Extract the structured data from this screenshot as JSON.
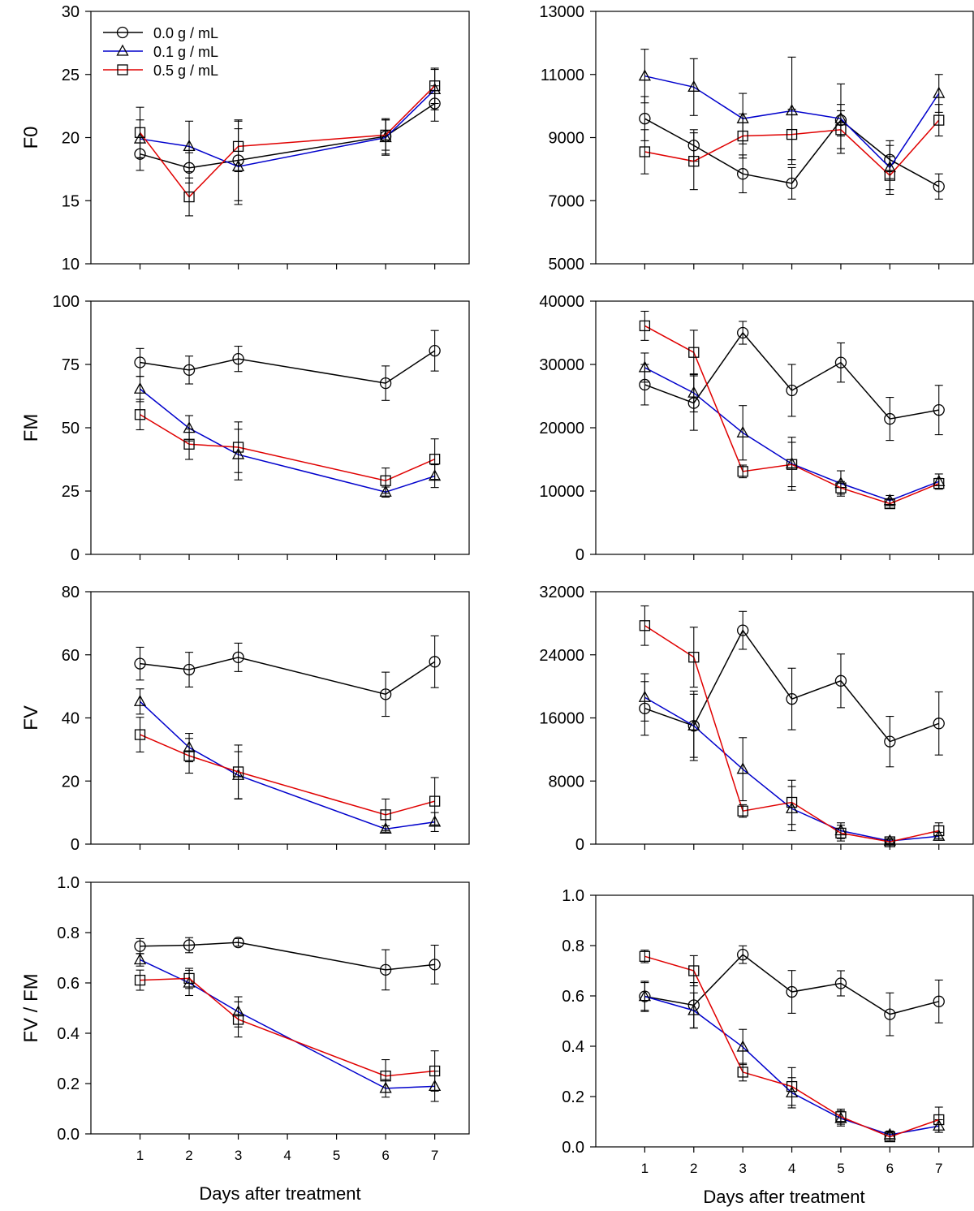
{
  "legend": {
    "entries": [
      {
        "label": "0.0 g / mL",
        "color": "#000000",
        "marker": "circle"
      },
      {
        "label": "0.1 g / mL",
        "color": "#0000cc",
        "marker": "triangle"
      },
      {
        "label": "0.5 g / mL",
        "color": "#e00000",
        "marker": "square"
      }
    ]
  },
  "x_axis_title": "Days after treatment",
  "chart_data": [
    {
      "type": "line",
      "panel": "left-1",
      "ylabel": "F0",
      "xlim": [
        0,
        7.7
      ],
      "ylim": [
        10,
        30
      ],
      "xticks": [
        1,
        2,
        3,
        4,
        5,
        6,
        7
      ],
      "yticks": [
        "10",
        "15",
        "20",
        "25",
        "30"
      ],
      "show_xticklabels": false,
      "series": [
        {
          "name": "0.0 g / mL",
          "color": "#000000",
          "marker": "circle",
          "x": [
            1,
            2,
            3,
            6,
            7
          ],
          "y": [
            18.7,
            17.6,
            18.2,
            20.1,
            22.7
          ],
          "err": [
            1.3,
            1.2,
            3.2,
            1.4,
            1.4
          ]
        },
        {
          "name": "0.1 g / mL",
          "color": "#0000cc",
          "marker": "triangle",
          "x": [
            1,
            2,
            3,
            6,
            7
          ],
          "y": [
            19.9,
            19.3,
            17.7,
            20.0,
            23.8
          ],
          "err": [
            1.5,
            2.0,
            3.0,
            1.4,
            1.6
          ]
        },
        {
          "name": "0.5 g / mL",
          "color": "#e00000",
          "marker": "square",
          "x": [
            1,
            2,
            3,
            6,
            7
          ],
          "y": [
            20.4,
            15.3,
            19.3,
            20.2,
            24.1
          ],
          "err": [
            2.0,
            1.5,
            2.0,
            1.2,
            1.4
          ]
        }
      ]
    },
    {
      "type": "line",
      "panel": "right-1",
      "ylabel": "",
      "xlim": [
        0,
        7.7
      ],
      "ylim": [
        5000,
        13000
      ],
      "xticks": [
        1,
        2,
        3,
        4,
        5,
        6,
        7
      ],
      "yticks": [
        "5000",
        "7000",
        "9000",
        "11000",
        "13000"
      ],
      "show_xticklabels": false,
      "series": [
        {
          "name": "0.0 g / mL",
          "color": "#000000",
          "marker": "circle",
          "x": [
            1,
            2,
            3,
            4,
            5,
            6,
            7
          ],
          "y": [
            9600,
            8750,
            7850,
            7550,
            9550,
            8300,
            7450
          ],
          "err": [
            700,
            500,
            600,
            500,
            500,
            600,
            400
          ]
        },
        {
          "name": "0.1 g / mL",
          "color": "#0000cc",
          "marker": "triangle",
          "x": [
            1,
            2,
            3,
            4,
            5,
            6,
            7
          ],
          "y": [
            10950,
            10600,
            9600,
            9850,
            9600,
            8050,
            10400
          ],
          "err": [
            850,
            900,
            800,
            1700,
            1100,
            700,
            600
          ]
        },
        {
          "name": "0.5 g / mL",
          "color": "#e00000",
          "marker": "square",
          "x": [
            1,
            2,
            3,
            4,
            5,
            6,
            7
          ],
          "y": [
            8550,
            8250,
            9050,
            9100,
            9250,
            7800,
            9550
          ],
          "err": [
            700,
            900,
            700,
            800,
            600,
            600,
            500
          ]
        }
      ]
    },
    {
      "type": "line",
      "panel": "left-2",
      "ylabel": "FM",
      "xlim": [
        0,
        7.7
      ],
      "ylim": [
        0,
        100
      ],
      "xticks": [
        1,
        2,
        3,
        4,
        5,
        6,
        7
      ],
      "yticks": [
        "0",
        "25",
        "50",
        "75",
        "100"
      ],
      "show_xticklabels": false,
      "series": [
        {
          "name": "0.0 g / mL",
          "color": "#000000",
          "marker": "circle",
          "x": [
            1,
            2,
            3,
            6,
            7
          ],
          "y": [
            75.8,
            72.8,
            77.2,
            67.6,
            80.4
          ],
          "err": [
            5.5,
            5.5,
            5.0,
            6.8,
            8.0
          ]
        },
        {
          "name": "0.1 g / mL",
          "color": "#0000cc",
          "marker": "triangle",
          "x": [
            1,
            2,
            3,
            6,
            7
          ],
          "y": [
            65.3,
            49.8,
            39.4,
            24.6,
            30.9
          ],
          "err": [
            5.0,
            5.0,
            10.0,
            2.0,
            4.5
          ]
        },
        {
          "name": "0.5 g / mL",
          "color": "#e00000",
          "marker": "square",
          "x": [
            1,
            2,
            3,
            6,
            7
          ],
          "y": [
            55.2,
            43.5,
            42.3,
            29.1,
            37.6
          ],
          "err": [
            6.0,
            6.0,
            10.0,
            5.0,
            8.0
          ]
        }
      ]
    },
    {
      "type": "line",
      "panel": "right-2",
      "ylabel": "",
      "xlim": [
        0,
        7.7
      ],
      "ylim": [
        0,
        40000
      ],
      "xticks": [
        1,
        2,
        3,
        4,
        5,
        6,
        7
      ],
      "yticks": [
        "0",
        "10000",
        "20000",
        "30000",
        "40000"
      ],
      "show_xticklabels": false,
      "series": [
        {
          "name": "0.0 g / mL",
          "color": "#000000",
          "marker": "circle",
          "x": [
            1,
            2,
            3,
            4,
            5,
            6,
            7
          ],
          "y": [
            26800,
            23900,
            35000,
            25900,
            30300,
            21400,
            22800
          ],
          "err": [
            3200,
            4300,
            1800,
            4100,
            3100,
            3400,
            3900
          ]
        },
        {
          "name": "0.1 g / mL",
          "color": "#0000cc",
          "marker": "triangle",
          "x": [
            1,
            2,
            3,
            4,
            5,
            6,
            7
          ],
          "y": [
            29500,
            25500,
            19200,
            14300,
            11200,
            8500,
            11500
          ],
          "err": [
            2300,
            3000,
            4300,
            4200,
            2000,
            800,
            1200
          ]
        },
        {
          "name": "0.5 g / mL",
          "color": "#e00000",
          "marker": "square",
          "x": [
            1,
            2,
            3,
            4,
            5,
            6,
            7
          ],
          "y": [
            36100,
            31900,
            13100,
            14200,
            10500,
            8000,
            11200
          ],
          "err": [
            2300,
            3500,
            1000,
            3500,
            1000,
            700,
            800
          ]
        }
      ]
    },
    {
      "type": "line",
      "panel": "left-3",
      "ylabel": "FV",
      "xlim": [
        0,
        7.7
      ],
      "ylim": [
        0,
        80
      ],
      "xticks": [
        1,
        2,
        3,
        4,
        5,
        6,
        7
      ],
      "yticks": [
        "0",
        "20",
        "40",
        "60",
        "80"
      ],
      "show_xticklabels": false,
      "series": [
        {
          "name": "0.0 g / mL",
          "color": "#000000",
          "marker": "circle",
          "x": [
            1,
            2,
            3,
            6,
            7
          ],
          "y": [
            57.2,
            55.3,
            59.2,
            47.5,
            57.8
          ],
          "err": [
            5.2,
            5.5,
            4.5,
            7.0,
            8.2
          ]
        },
        {
          "name": "0.1 g / mL",
          "color": "#0000cc",
          "marker": "triangle",
          "x": [
            1,
            2,
            3,
            6,
            7
          ],
          "y": [
            45.2,
            30.6,
            21.8,
            4.8,
            7.0
          ],
          "err": [
            4.0,
            4.5,
            7.5,
            1.0,
            3.0
          ]
        },
        {
          "name": "0.5 g / mL",
          "color": "#e00000",
          "marker": "square",
          "x": [
            1,
            2,
            3,
            6,
            7
          ],
          "y": [
            34.7,
            28.0,
            22.9,
            9.3,
            13.6
          ],
          "err": [
            5.5,
            5.5,
            8.5,
            5.0,
            7.5
          ]
        }
      ]
    },
    {
      "type": "line",
      "panel": "right-3",
      "ylabel": "",
      "xlim": [
        0,
        7.7
      ],
      "ylim": [
        0,
        32000
      ],
      "xticks": [
        1,
        2,
        3,
        4,
        5,
        6,
        7
      ],
      "yticks": [
        "0",
        "8000",
        "16000",
        "24000",
        "32000"
      ],
      "show_xticklabels": false,
      "series": [
        {
          "name": "0.0 g / mL",
          "color": "#000000",
          "marker": "circle",
          "x": [
            1,
            2,
            3,
            4,
            5,
            6,
            7
          ],
          "y": [
            17200,
            15000,
            27100,
            18400,
            20700,
            13000,
            15300
          ],
          "err": [
            3400,
            4400,
            2400,
            3900,
            3400,
            3200,
            4000
          ]
        },
        {
          "name": "0.1 g / mL",
          "color": "#0000cc",
          "marker": "triangle",
          "x": [
            1,
            2,
            3,
            4,
            5,
            6,
            7
          ],
          "y": [
            18600,
            15000,
            9500,
            4500,
            1700,
            400,
            1000
          ],
          "err": [
            3000,
            4000,
            4000,
            2800,
            1000,
            300,
            500
          ]
        },
        {
          "name": "0.5 g / mL",
          "color": "#e00000",
          "marker": "square",
          "x": [
            1,
            2,
            3,
            4,
            5,
            6,
            7
          ],
          "y": [
            27700,
            23700,
            4200,
            5300,
            1400,
            300,
            1700
          ],
          "err": [
            2500,
            3800,
            800,
            2800,
            1000,
            300,
            1000
          ]
        }
      ]
    },
    {
      "type": "line",
      "panel": "left-4",
      "ylabel": "FV / FM",
      "xlabel": "Days after treatment",
      "xlim": [
        0,
        7.7
      ],
      "ylim": [
        0,
        1
      ],
      "xticks": [
        1,
        2,
        3,
        4,
        5,
        6,
        7
      ],
      "yticks": [
        "0.0",
        "0.2",
        "0.4",
        "0.6",
        "0.8",
        "1.0"
      ],
      "show_xticklabels": true,
      "series": [
        {
          "name": "0.0 g / mL",
          "color": "#000000",
          "marker": "circle",
          "x": [
            1,
            2,
            3,
            6,
            7
          ],
          "y": [
            0.746,
            0.75,
            0.761,
            0.652,
            0.673
          ],
          "err": [
            0.03,
            0.03,
            0.015,
            0.08,
            0.077
          ]
        },
        {
          "name": "0.1 g / mL",
          "color": "#0000cc",
          "marker": "triangle",
          "x": [
            1,
            2,
            3,
            6,
            7
          ],
          "y": [
            0.692,
            0.6,
            0.485,
            0.181,
            0.189
          ],
          "err": [
            0.025,
            0.05,
            0.06,
            0.035,
            0.06
          ]
        },
        {
          "name": "0.5 g / mL",
          "color": "#e00000",
          "marker": "square",
          "x": [
            1,
            2,
            3,
            6,
            7
          ],
          "y": [
            0.611,
            0.618,
            0.455,
            0.23,
            0.25
          ],
          "err": [
            0.04,
            0.04,
            0.07,
            0.065,
            0.08
          ]
        }
      ]
    },
    {
      "type": "line",
      "panel": "right-4",
      "ylabel": "",
      "xlabel": "Days after treatment",
      "xlim": [
        0,
        7.7
      ],
      "ylim": [
        0,
        1
      ],
      "xticks": [
        1,
        2,
        3,
        4,
        5,
        6,
        7
      ],
      "yticks": [
        "0.0",
        "0.2",
        "0.4",
        "0.6",
        "0.8",
        "1.0"
      ],
      "show_xticklabels": true,
      "series": [
        {
          "name": "0.0 g / mL",
          "color": "#000000",
          "marker": "circle",
          "x": [
            1,
            2,
            3,
            4,
            5,
            6,
            7
          ],
          "y": [
            0.598,
            0.563,
            0.764,
            0.616,
            0.65,
            0.527,
            0.578
          ],
          "err": [
            0.055,
            0.09,
            0.035,
            0.085,
            0.05,
            0.085,
            0.085
          ]
        },
        {
          "name": "0.1 g / mL",
          "color": "#0000cc",
          "marker": "triangle",
          "x": [
            1,
            2,
            3,
            4,
            5,
            6,
            7
          ],
          "y": [
            0.598,
            0.542,
            0.397,
            0.215,
            0.113,
            0.048,
            0.083
          ],
          "err": [
            0.06,
            0.07,
            0.07,
            0.06,
            0.03,
            0.015,
            0.025
          ]
        },
        {
          "name": "0.5 g / mL",
          "color": "#e00000",
          "marker": "square",
          "x": [
            1,
            2,
            3,
            4,
            5,
            6,
            7
          ],
          "y": [
            0.757,
            0.7,
            0.297,
            0.24,
            0.12,
            0.04,
            0.108
          ],
          "err": [
            0.025,
            0.06,
            0.035,
            0.075,
            0.03,
            0.015,
            0.05
          ]
        }
      ]
    }
  ]
}
